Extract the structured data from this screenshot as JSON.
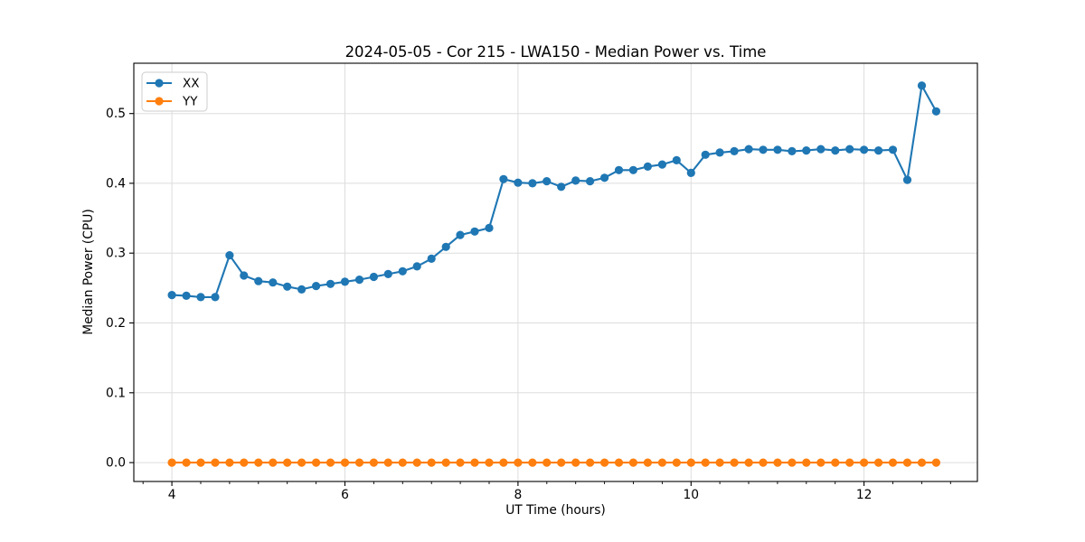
{
  "window": {
    "background": "#ffffff"
  },
  "chart_data": {
    "type": "line",
    "title": "2024-05-05 - Cor 215 - LWA150 - Median Power vs. Time",
    "xlabel": "UT Time (hours)",
    "ylabel": "Median Power (CPU)",
    "xlim": [
      3.56,
      13.31
    ],
    "ylim": [
      -0.027,
      0.572
    ],
    "xticks": [
      4,
      6,
      8,
      10,
      12
    ],
    "xtick_labels": [
      "4",
      "6",
      "8",
      "10",
      "12"
    ],
    "x_minor_step": 0.33333,
    "yticks": [
      0.0,
      0.1,
      0.2,
      0.3,
      0.4,
      0.5
    ],
    "ytick_labels": [
      "0.0",
      "0.1",
      "0.2",
      "0.3",
      "0.4",
      "0.5"
    ],
    "grid": true,
    "grid_color": "#dddddd",
    "spine_color": "#000000",
    "legend_position": "upper-left",
    "x": [
      4,
      4.167,
      4.333,
      4.5,
      4.667,
      4.833,
      5,
      5.167,
      5.333,
      5.5,
      5.667,
      5.833,
      6,
      6.167,
      6.333,
      6.5,
      6.667,
      6.833,
      7,
      7.167,
      7.333,
      7.5,
      7.667,
      7.833,
      8,
      8.167,
      8.333,
      8.5,
      8.667,
      8.833,
      9,
      9.167,
      9.333,
      9.5,
      9.667,
      9.833,
      10,
      10.167,
      10.333,
      10.5,
      10.667,
      10.833,
      11,
      11.167,
      11.333,
      11.5,
      11.667,
      11.833,
      12,
      12.167,
      12.333,
      12.5,
      12.667,
      12.833
    ],
    "series": [
      {
        "name": "XX",
        "color": "#1f77b4",
        "values": [
          0.24,
          0.239,
          0.237,
          0.237,
          0.297,
          0.268,
          0.26,
          0.258,
          0.252,
          0.248,
          0.253,
          0.256,
          0.259,
          0.262,
          0.266,
          0.27,
          0.274,
          0.281,
          0.292,
          0.309,
          0.326,
          0.331,
          0.336,
          0.406,
          0.401,
          0.4,
          0.403,
          0.395,
          0.404,
          0.403,
          0.408,
          0.419,
          0.419,
          0.424,
          0.427,
          0.433,
          0.415,
          0.441,
          0.444,
          0.446,
          0.449,
          0.448,
          0.448,
          0.446,
          0.447,
          0.449,
          0.447,
          0.449,
          0.448,
          0.447,
          0.448,
          0.405,
          0.54,
          0.503
        ]
      },
      {
        "name": "YY",
        "color": "#ff7f0e",
        "values": [
          0.0,
          0.0,
          0.0,
          0.0,
          0.0,
          0.0,
          0.0,
          0.0,
          0.0,
          0.0,
          0.0,
          0.0,
          0.0,
          0.0,
          0.0,
          0.0,
          0.0,
          0.0,
          0.0,
          0.0,
          0.0,
          0.0,
          0.0,
          0.0,
          0.0,
          0.0,
          0.0,
          0.0,
          0.0,
          0.0,
          0.0,
          0.0,
          0.0,
          0.0,
          0.0,
          0.0,
          0.0,
          0.0,
          0.0,
          0.0,
          0.0,
          0.0,
          0.0,
          0.0,
          0.0,
          0.0,
          0.0,
          0.0,
          0.0,
          0.0,
          0.0,
          0.0,
          0.0,
          0.0
        ]
      }
    ]
  }
}
